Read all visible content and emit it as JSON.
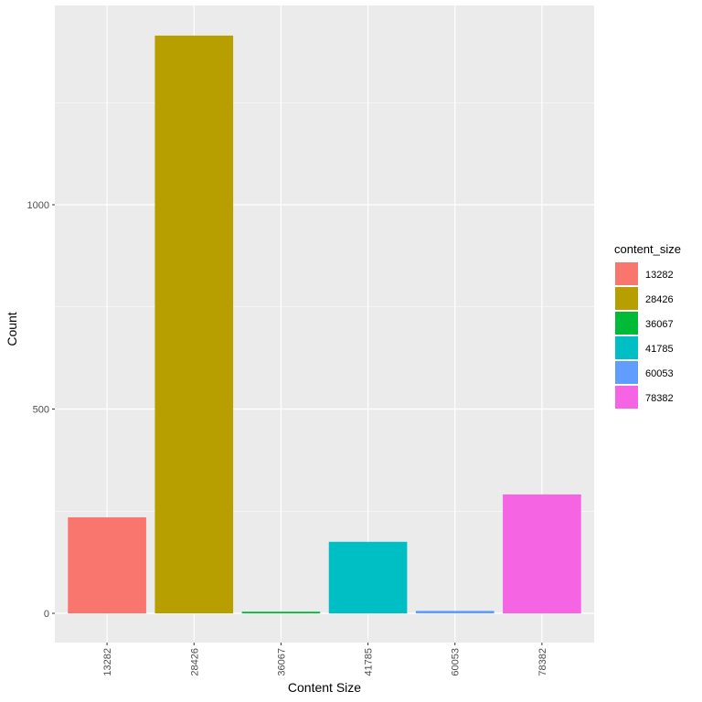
{
  "chart_data": {
    "type": "bar",
    "title": "",
    "xlabel": "Content Size",
    "ylabel": "Count",
    "categories": [
      "13282",
      "28426",
      "36067",
      "41785",
      "60053",
      "78382"
    ],
    "values": [
      235,
      1414,
      4,
      175,
      6,
      291
    ],
    "colors": [
      "#F8766D",
      "#B79F00",
      "#00BA38",
      "#00BFC4",
      "#619CFF",
      "#F564E3"
    ],
    "yticks": [
      0,
      500,
      1000
    ],
    "ylim": [
      -72,
      1458
    ],
    "grid": true,
    "legend": {
      "title": "content_size",
      "position": "right",
      "entries": [
        "13282",
        "28426",
        "36067",
        "41785",
        "60053",
        "78382"
      ]
    }
  }
}
